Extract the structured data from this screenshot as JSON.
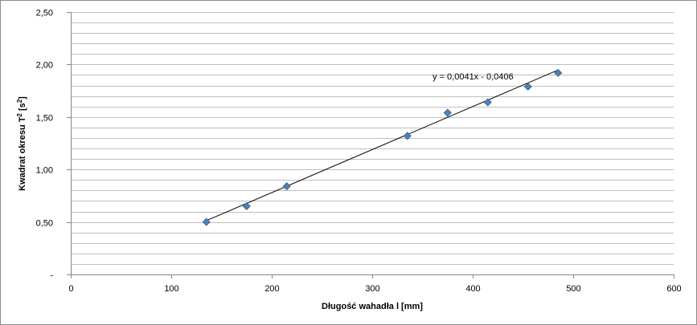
{
  "chart_data": {
    "type": "scatter",
    "title": "",
    "xlabel": "Długość wahadła  l [mm]",
    "ylabel_main": "Kwadrat okresu T",
    "ylabel_sup": "2",
    "ylabel_unit_open": " [s",
    "ylabel_unit_sup": "2",
    "ylabel_unit_close": "]",
    "xlim": [
      0,
      600
    ],
    "ylim": [
      0,
      2.5
    ],
    "x_ticks": [
      0,
      100,
      200,
      300,
      400,
      500,
      600
    ],
    "x_tick_labels": [
      "0",
      "100",
      "200",
      "300",
      "400",
      "500",
      "600"
    ],
    "y_ticks": [
      0,
      0.5,
      1.0,
      1.5,
      2.0,
      2.5
    ],
    "y_tick_labels": [
      "-",
      "0,50",
      "1,00",
      "1,50",
      "2,00",
      "2,50"
    ],
    "y_minor_step": 0.1,
    "grid": true,
    "legend": "none",
    "series": [
      {
        "x": [
          135,
          175,
          215,
          335,
          375,
          415,
          455,
          485
        ],
        "y": [
          0.5,
          0.65,
          0.84,
          1.32,
          1.54,
          1.64,
          1.79,
          1.92
        ]
      }
    ],
    "trendline": {
      "slope": 0.0041,
      "intercept": -0.0406,
      "x_range": [
        135,
        485
      ],
      "equation": "y = 0,0041x - 0,0406"
    },
    "colors": {
      "marker": "#4f81bd",
      "marker_edge": "#385d8a",
      "trendline": "#000000",
      "grid": "#bfbfbf",
      "axis": "#868686"
    }
  }
}
